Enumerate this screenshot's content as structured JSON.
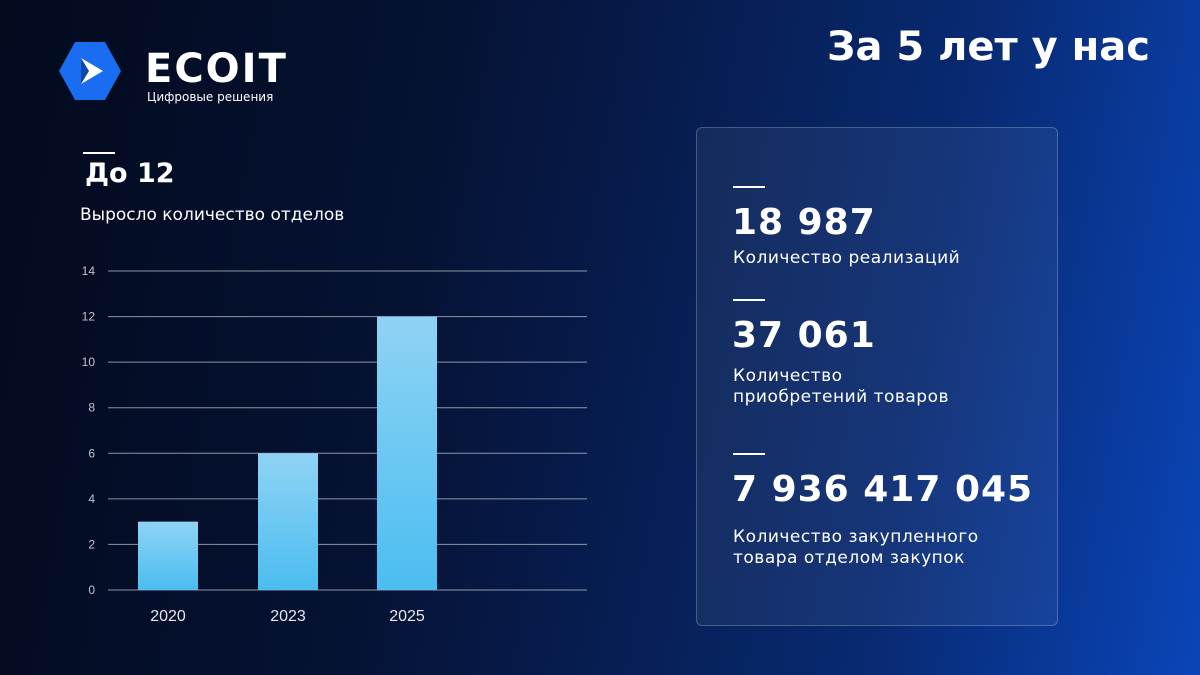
{
  "brand": {
    "name": "ECOIT",
    "tagline": "Цифровые решения"
  },
  "headline": "За 5 лет у нас",
  "departments": {
    "value": "До 12",
    "caption": "Выросло  количество отделов"
  },
  "chart_data": {
    "type": "bar",
    "categories": [
      "2020",
      "2023",
      "2025"
    ],
    "values": [
      3,
      6,
      12
    ],
    "ylim": [
      0,
      14
    ],
    "yticks": [
      0,
      2,
      4,
      6,
      8,
      10,
      12,
      14
    ],
    "grid": true,
    "title": "",
    "xlabel": "",
    "ylabel": ""
  },
  "stats": [
    {
      "value": "18 987",
      "label": "Количество  реализаций"
    },
    {
      "value": "37 061",
      "label": "Количество\nприобретений  товаров"
    },
    {
      "value": "7 936 417 045",
      "label": "Количество закупленного\nтовара отделом закупок"
    }
  ],
  "colors": {
    "bar_top": "#8fd3f5",
    "bar_bottom": "#4bbdf0",
    "logo": "#1a6df0"
  }
}
